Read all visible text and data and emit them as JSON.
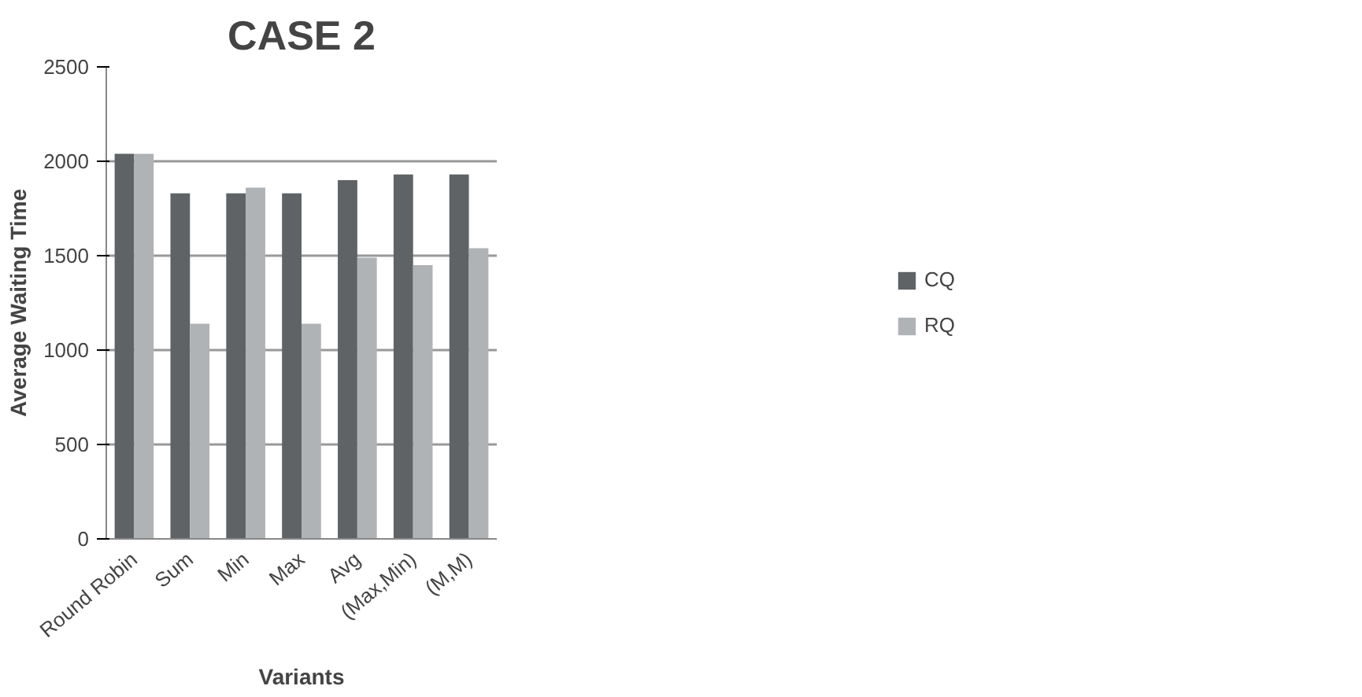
{
  "chart_data": {
    "type": "bar",
    "title": "CASE 2",
    "xlabel": "Variants",
    "ylabel": "Average Waiting Time",
    "categories": [
      "Round Robin",
      "Sum",
      "Min",
      "Max",
      "Avg",
      "(Max,Min)",
      "(M,M)"
    ],
    "series": [
      {
        "name": "CQ",
        "color": "#5f6366",
        "values": [
          2040,
          1830,
          1830,
          1830,
          1900,
          1930,
          1930
        ]
      },
      {
        "name": "RQ",
        "color": "#b0b3b5",
        "values": [
          2040,
          1140,
          1860,
          1140,
          1490,
          1450,
          1540
        ]
      }
    ],
    "ylim": [
      0,
      2500
    ],
    "yticks": [
      0,
      500,
      1000,
      1500,
      2000,
      2500
    ],
    "grid": "y",
    "legend": "right"
  }
}
